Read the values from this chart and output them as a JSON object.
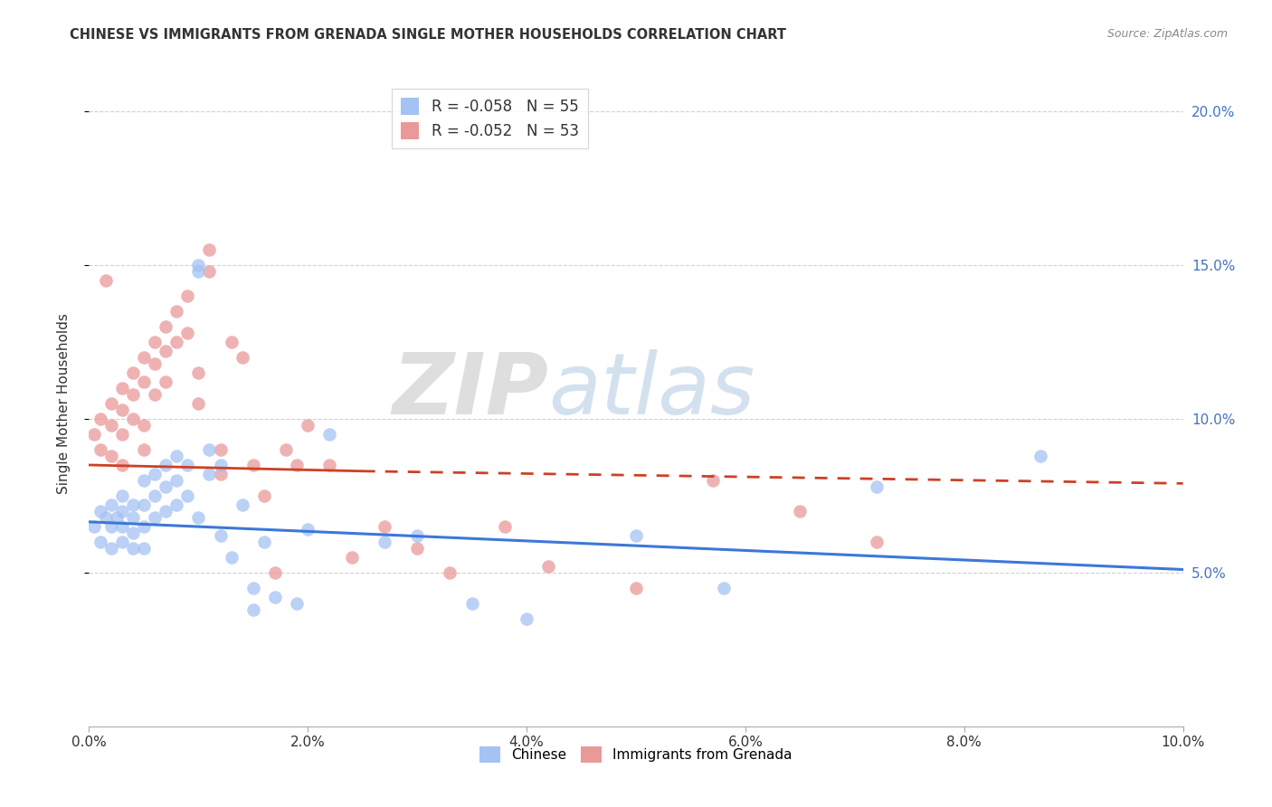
{
  "title": "CHINESE VS IMMIGRANTS FROM GRENADA SINGLE MOTHER HOUSEHOLDS CORRELATION CHART",
  "source": "Source: ZipAtlas.com",
  "ylabel": "Single Mother Households",
  "xlim": [
    0.0,
    0.1
  ],
  "ylim": [
    0.0,
    0.21
  ],
  "xticks": [
    0.0,
    0.02,
    0.04,
    0.06,
    0.08,
    0.1
  ],
  "yticks_right": [
    0.05,
    0.1,
    0.15,
    0.2
  ],
  "yticks_right_labels": [
    "5.0%",
    "10.0%",
    "15.0%",
    "20.0%"
  ],
  "legend_r_entries": [
    {
      "label": "R = -0.058   N = 55",
      "color": "#a4c2f4"
    },
    {
      "label": "R = -0.052   N = 53",
      "color": "#ea9999"
    }
  ],
  "chinese_color": "#a4c2f4",
  "grenada_color": "#ea9999",
  "trend_chinese_color": "#3c78d8",
  "trend_grenada_color": "#cc4125",
  "background_color": "#ffffff",
  "grid_color": "#d0d0d0",
  "chinese_x": [
    0.0005,
    0.001,
    0.001,
    0.0015,
    0.002,
    0.002,
    0.002,
    0.0025,
    0.003,
    0.003,
    0.003,
    0.003,
    0.004,
    0.004,
    0.004,
    0.004,
    0.005,
    0.005,
    0.005,
    0.005,
    0.006,
    0.006,
    0.006,
    0.007,
    0.007,
    0.007,
    0.008,
    0.008,
    0.008,
    0.009,
    0.009,
    0.01,
    0.01,
    0.01,
    0.011,
    0.011,
    0.012,
    0.012,
    0.013,
    0.014,
    0.015,
    0.015,
    0.016,
    0.017,
    0.019,
    0.02,
    0.022,
    0.027,
    0.03,
    0.035,
    0.04,
    0.05,
    0.058,
    0.072,
    0.087
  ],
  "chinese_y": [
    0.065,
    0.07,
    0.06,
    0.068,
    0.072,
    0.065,
    0.058,
    0.068,
    0.075,
    0.07,
    0.065,
    0.06,
    0.072,
    0.068,
    0.063,
    0.058,
    0.08,
    0.072,
    0.065,
    0.058,
    0.082,
    0.075,
    0.068,
    0.085,
    0.078,
    0.07,
    0.088,
    0.08,
    0.072,
    0.085,
    0.075,
    0.15,
    0.148,
    0.068,
    0.09,
    0.082,
    0.085,
    0.062,
    0.055,
    0.072,
    0.045,
    0.038,
    0.06,
    0.042,
    0.04,
    0.064,
    0.095,
    0.06,
    0.062,
    0.04,
    0.035,
    0.062,
    0.045,
    0.078,
    0.088
  ],
  "grenada_x": [
    0.0005,
    0.001,
    0.001,
    0.0015,
    0.002,
    0.002,
    0.002,
    0.003,
    0.003,
    0.003,
    0.003,
    0.004,
    0.004,
    0.004,
    0.005,
    0.005,
    0.005,
    0.005,
    0.006,
    0.006,
    0.006,
    0.007,
    0.007,
    0.007,
    0.008,
    0.008,
    0.009,
    0.009,
    0.01,
    0.01,
    0.011,
    0.011,
    0.012,
    0.012,
    0.013,
    0.014,
    0.015,
    0.016,
    0.017,
    0.018,
    0.019,
    0.02,
    0.022,
    0.024,
    0.027,
    0.03,
    0.033,
    0.038,
    0.042,
    0.05,
    0.057,
    0.065,
    0.072
  ],
  "grenada_y": [
    0.095,
    0.1,
    0.09,
    0.145,
    0.105,
    0.098,
    0.088,
    0.11,
    0.103,
    0.095,
    0.085,
    0.115,
    0.108,
    0.1,
    0.12,
    0.112,
    0.098,
    0.09,
    0.125,
    0.118,
    0.108,
    0.13,
    0.122,
    0.112,
    0.135,
    0.125,
    0.14,
    0.128,
    0.115,
    0.105,
    0.155,
    0.148,
    0.09,
    0.082,
    0.125,
    0.12,
    0.085,
    0.075,
    0.05,
    0.09,
    0.085,
    0.098,
    0.085,
    0.055,
    0.065,
    0.058,
    0.05,
    0.065,
    0.052,
    0.045,
    0.08,
    0.07,
    0.06
  ],
  "trend_chinese_start_x": 0.0,
  "trend_chinese_start_y": 0.0665,
  "trend_chinese_end_x": 0.1,
  "trend_chinese_end_y": 0.051,
  "trend_grenada_solid_start_x": 0.0,
  "trend_grenada_solid_start_y": 0.085,
  "trend_grenada_solid_end_x": 0.025,
  "trend_grenada_solid_end_y": 0.083,
  "trend_grenada_dash_start_x": 0.025,
  "trend_grenada_dash_start_y": 0.083,
  "trend_grenada_dash_end_x": 0.1,
  "trend_grenada_dash_end_y": 0.079
}
